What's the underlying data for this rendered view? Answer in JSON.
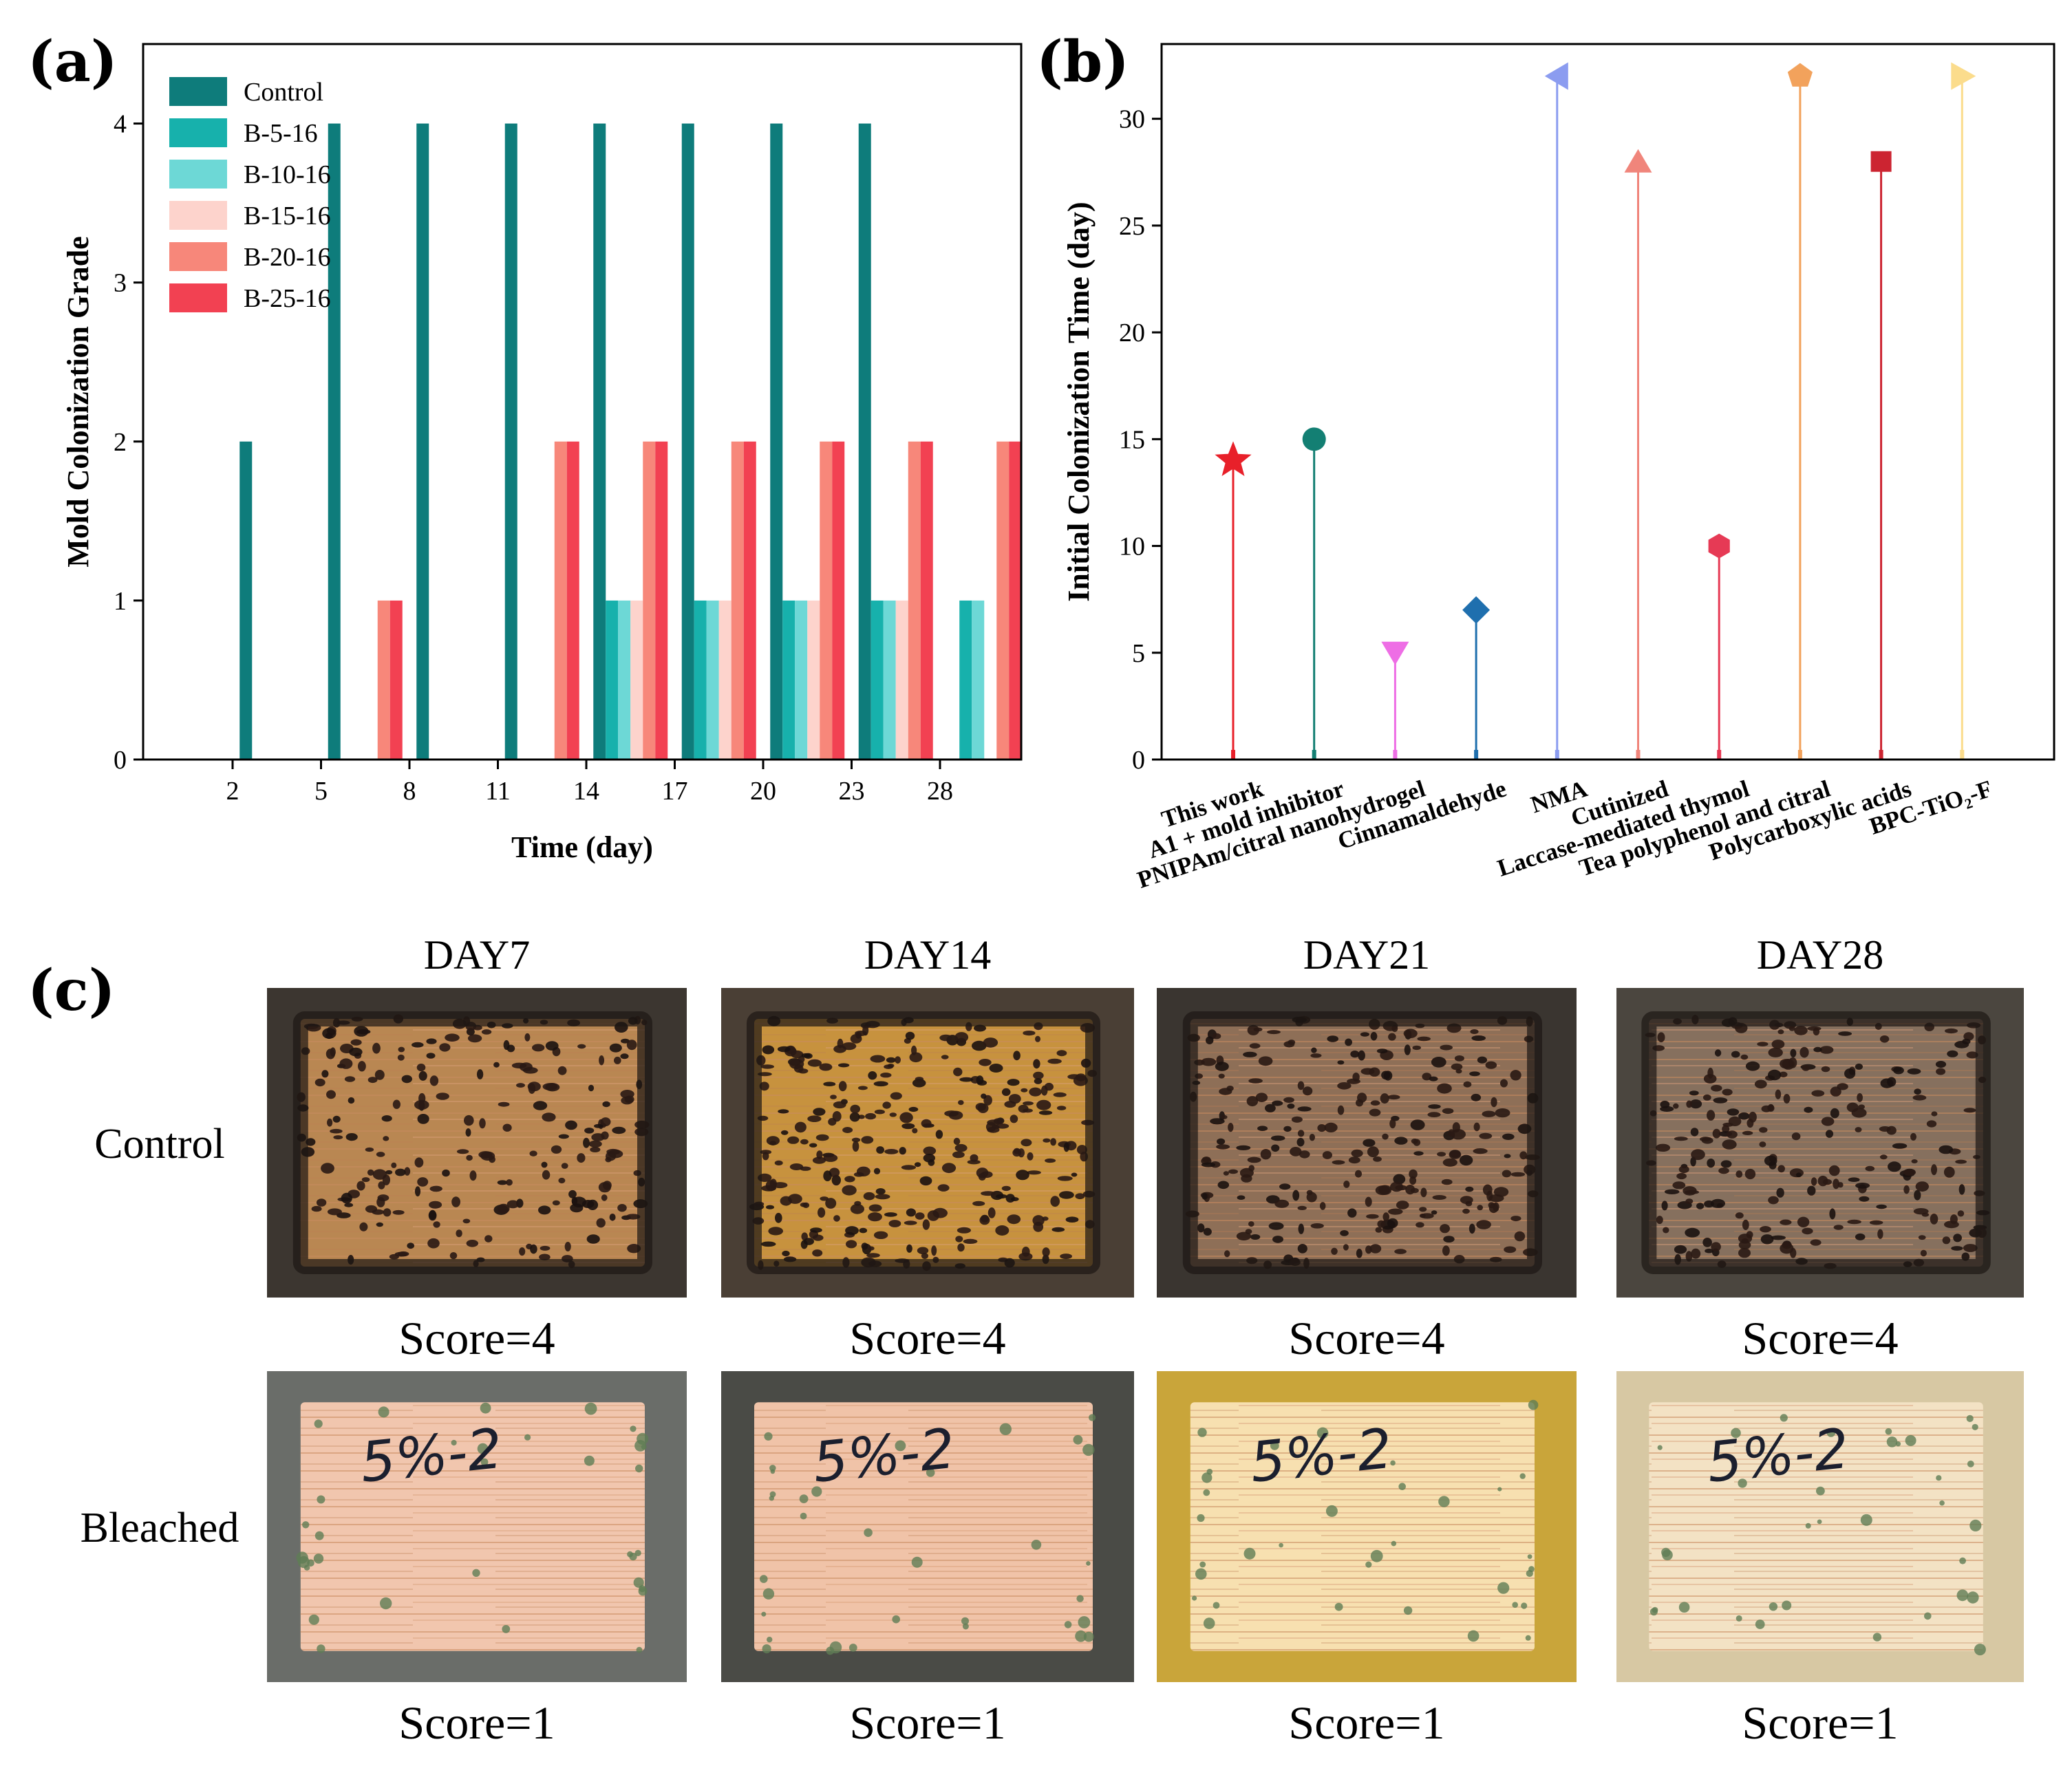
{
  "panels": {
    "a": {
      "letter": "(a)"
    },
    "b": {
      "letter": "(b)"
    },
    "c": {
      "letter": "(c)"
    }
  },
  "chart_data": [
    {
      "id": "a",
      "type": "bar",
      "title": "",
      "xlabel": "Time (day)",
      "ylabel": "Mold Colonization Grade",
      "categories": [
        "2",
        "5",
        "8",
        "11",
        "14",
        "17",
        "20",
        "23",
        "28"
      ],
      "ylim": [
        0,
        4.5
      ],
      "yticks": [
        0,
        1,
        2,
        3,
        4
      ],
      "legend_position": "top-left",
      "series": [
        {
          "name": "Control",
          "color": "#0e7c7b",
          "values": [
            2,
            4,
            4,
            4,
            4,
            4,
            4,
            4,
            0
          ]
        },
        {
          "name": "B-5-16",
          "color": "#17b1ac",
          "values": [
            0,
            0,
            0,
            0,
            1,
            1,
            1,
            1,
            1
          ]
        },
        {
          "name": "B-10-16",
          "color": "#6dd8d6",
          "values": [
            0,
            0,
            0,
            0,
            1,
            1,
            1,
            1,
            1
          ]
        },
        {
          "name": "B-15-16",
          "color": "#fdd3cc",
          "values": [
            0,
            0,
            0,
            0,
            1,
            1,
            1,
            1,
            0
          ]
        },
        {
          "name": "B-20-16",
          "color": "#f7877a",
          "values": [
            0,
            1,
            0,
            2,
            2,
            2,
            2,
            2,
            2
          ]
        },
        {
          "name": "B-25-16",
          "color": "#f24152",
          "values": [
            0,
            1,
            0,
            2,
            2,
            2,
            2,
            2,
            2
          ]
        }
      ]
    },
    {
      "id": "b",
      "type": "scatter",
      "title": "",
      "xlabel": "",
      "ylabel": "Initial Colonization Time (day)",
      "ylim": [
        0,
        33.5
      ],
      "yticks": [
        0,
        5,
        10,
        15,
        20,
        25,
        30
      ],
      "points": [
        {
          "label": "This work",
          "value": 14,
          "marker": "star",
          "color": "#e8202a"
        },
        {
          "label": "A1 + mold inhibitor",
          "value": 15,
          "marker": "circle",
          "color": "#137f73"
        },
        {
          "label": "PNIPAm/citral nanohydrogel",
          "value": 5,
          "marker": "triangle-down",
          "color": "#ee6ee5"
        },
        {
          "label": "Cinnamaldehyde",
          "value": 7,
          "marker": "diamond",
          "color": "#1f6fae"
        },
        {
          "label": "NMA",
          "value": 32,
          "marker": "triangle-left",
          "color": "#8b9cf0"
        },
        {
          "label": "Cutinized",
          "value": 28,
          "marker": "triangle-up",
          "color": "#f0857b"
        },
        {
          "label": "Laccase-mediated thymol",
          "value": 10,
          "marker": "hexagon",
          "color": "#e63a55"
        },
        {
          "label": "Tea polyphenol and citral",
          "value": 32,
          "marker": "pentagon",
          "color": "#f2a25c"
        },
        {
          "label": "Polycarboxylic acids",
          "value": 28,
          "marker": "square",
          "color": "#cc2431"
        },
        {
          "label": "BPC-TiO₂-F",
          "value": 32,
          "marker": "triangle-right",
          "color": "#fbdc8c"
        }
      ]
    }
  ],
  "photos": {
    "days": [
      "DAY7",
      "DAY14",
      "DAY21",
      "DAY28"
    ],
    "rows": [
      {
        "label": "Control",
        "scores": [
          "Score=4",
          "Score=4",
          "Score=4",
          "Score=4"
        ]
      },
      {
        "label": "Bleached",
        "scores": [
          "Score=1",
          "Score=1",
          "Score=1",
          "Score=1"
        ]
      }
    ],
    "handwriting": "5%-2"
  }
}
